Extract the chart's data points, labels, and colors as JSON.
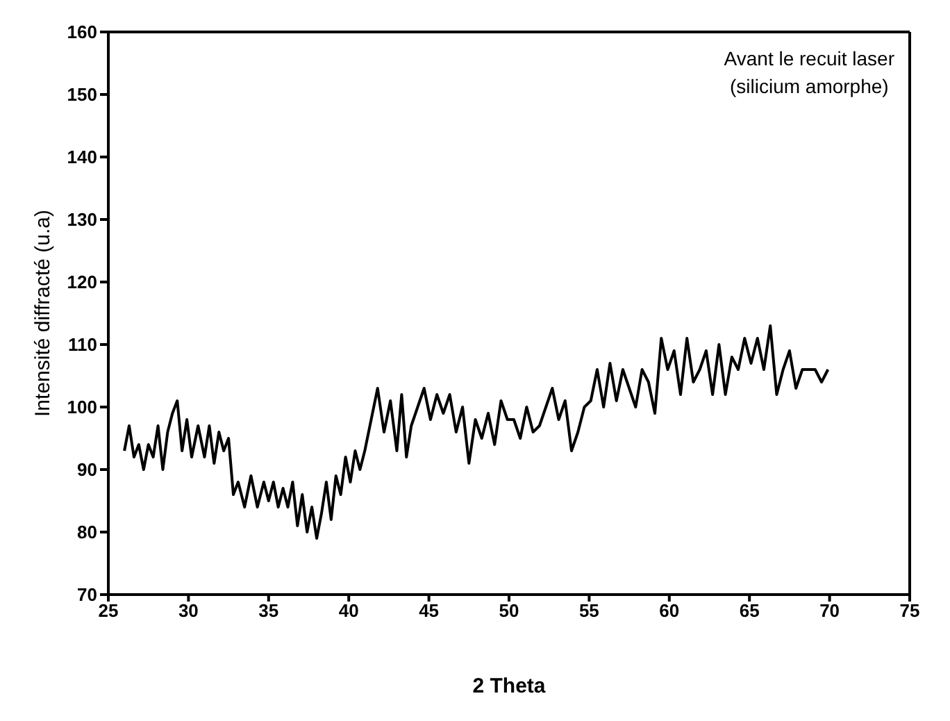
{
  "chart_data": {
    "type": "line",
    "xlabel": "2 Theta",
    "ylabel": "Intensité diffracté (u.a)",
    "annotations": [
      "Avant le recuit laser\n(silicium amorphe)"
    ],
    "x": [
      26,
      26.3,
      26.6,
      26.9,
      27.2,
      27.5,
      27.8,
      28.1,
      28.4,
      28.7,
      29,
      29.3,
      29.6,
      29.9,
      30.2,
      30.6,
      31,
      31.3,
      31.6,
      31.9,
      32.2,
      32.5,
      32.8,
      33.1,
      33.5,
      33.9,
      34.3,
      34.7,
      35,
      35.3,
      35.6,
      35.9,
      36.2,
      36.5,
      36.8,
      37.1,
      37.4,
      37.7,
      38,
      38.3,
      38.6,
      38.9,
      39.2,
      39.5,
      39.8,
      40.1,
      40.4,
      40.7,
      41,
      41.4,
      41.8,
      42.2,
      42.6,
      43,
      43.3,
      43.6,
      43.9,
      44.3,
      44.7,
      45.1,
      45.5,
      45.9,
      46.3,
      46.7,
      47.1,
      47.5,
      47.9,
      48.3,
      48.7,
      49.1,
      49.5,
      49.9,
      50.3,
      50.7,
      51.1,
      51.5,
      51.9,
      52.3,
      52.7,
      53.1,
      53.5,
      53.9,
      54.3,
      54.7,
      55.1,
      55.5,
      55.9,
      56.3,
      56.7,
      57.1,
      57.5,
      57.9,
      58.3,
      58.7,
      59.1,
      59.5,
      59.9,
      60.3,
      60.7,
      61.1,
      61.5,
      61.9,
      62.3,
      62.7,
      63.1,
      63.5,
      63.9,
      64.3,
      64.7,
      65.1,
      65.5,
      65.9,
      66.3,
      66.7,
      67.1,
      67.5,
      67.9,
      68.3,
      68.7,
      69.1,
      69.5,
      69.9
    ],
    "series": [
      {
        "color": "#000000",
        "values": [
          93,
          97,
          92,
          94,
          90,
          94,
          92,
          97,
          90,
          96,
          99,
          101,
          93,
          98,
          92,
          97,
          92,
          97,
          91,
          96,
          93,
          95,
          86,
          88,
          84,
          89,
          84,
          88,
          85,
          88,
          84,
          87,
          84,
          88,
          81,
          86,
          80,
          84,
          79,
          83,
          88,
          82,
          89,
          86,
          92,
          88,
          93,
          90,
          93,
          98,
          103,
          96,
          101,
          93,
          102,
          92,
          97,
          100,
          103,
          98,
          102,
          99,
          102,
          96,
          100,
          91,
          98,
          95,
          99,
          94,
          101,
          98,
          98,
          95,
          100,
          96,
          97,
          100,
          103,
          98,
          101,
          93,
          96,
          100,
          101,
          106,
          100,
          107,
          101,
          106,
          103,
          100,
          106,
          104,
          99,
          111,
          106,
          109,
          102,
          111,
          104,
          106,
          109,
          102,
          110,
          102,
          108,
          106,
          111,
          107,
          111,
          106,
          113,
          102,
          106,
          109,
          103,
          106,
          106,
          106,
          104,
          106
        ]
      }
    ],
    "xlim": [
      25,
      75
    ],
    "xticks": [
      25,
      30,
      35,
      40,
      45,
      50,
      55,
      60,
      65,
      70,
      75
    ],
    "ylim": [
      70,
      160
    ],
    "yticks": [
      70,
      80,
      90,
      100,
      110,
      120,
      130,
      140,
      150,
      160
    ],
    "grid": false,
    "marker": "none",
    "line_style": "solid"
  }
}
